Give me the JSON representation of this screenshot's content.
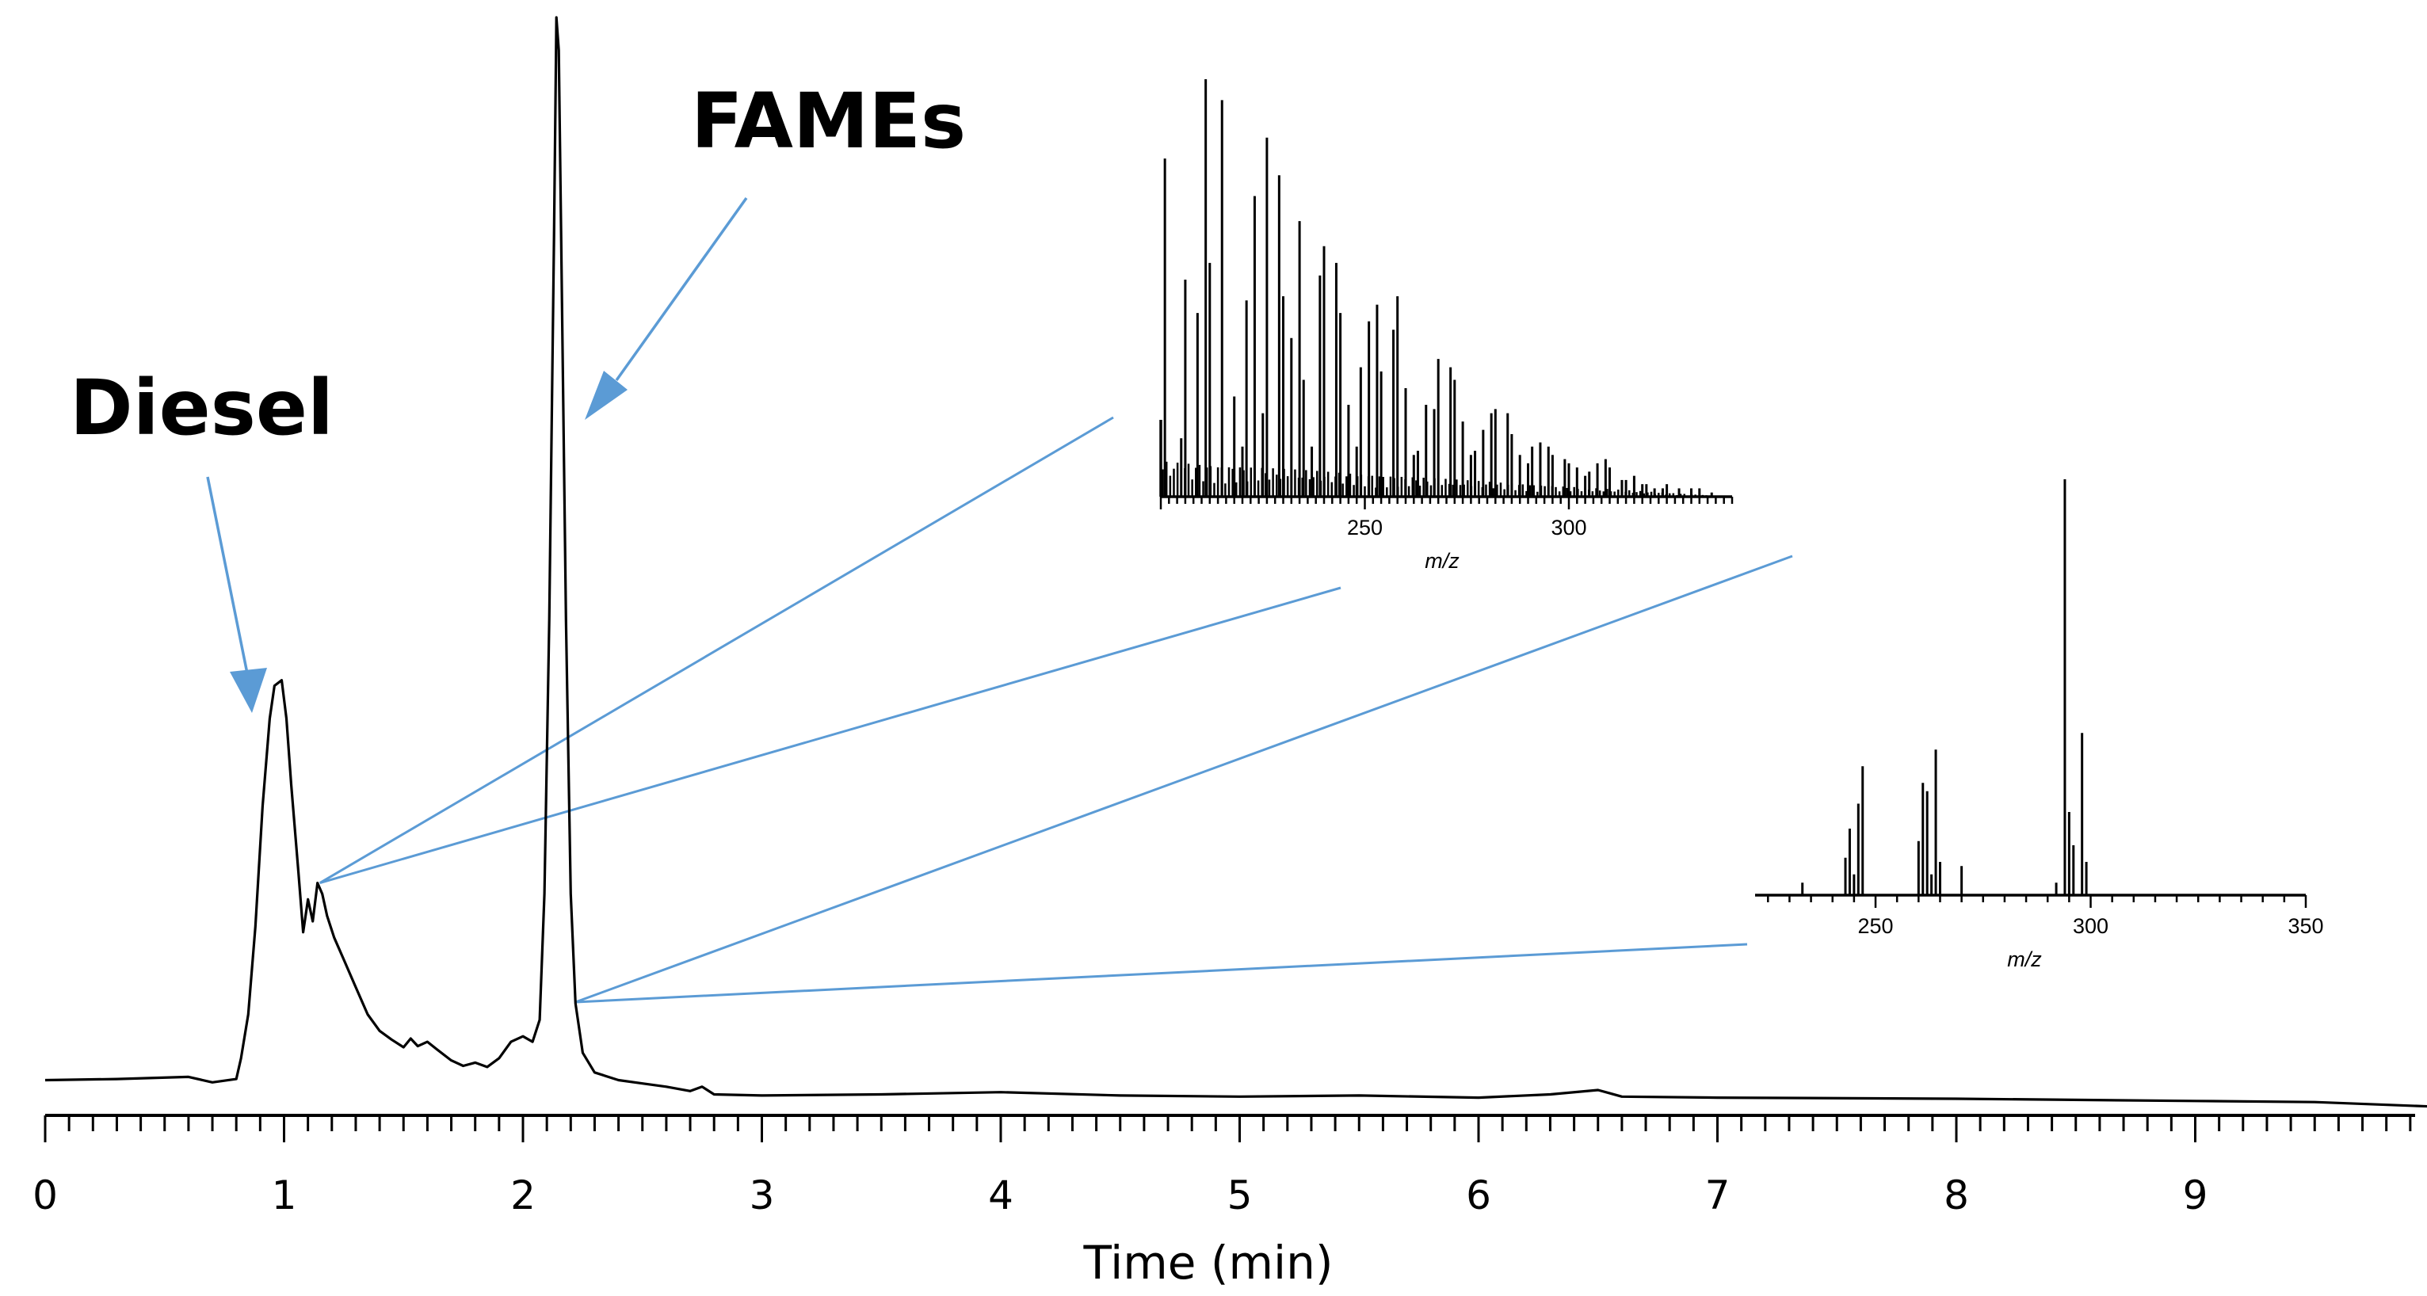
{
  "chart_data": {
    "type": "line",
    "title": "",
    "xlabel": "Time (min)",
    "ylabel": "",
    "xlim": [
      0,
      10
    ],
    "x_ticks": [
      0,
      1,
      2,
      3,
      4,
      5,
      6,
      7,
      8,
      9
    ],
    "x_tick_labels": [
      "0",
      "1",
      "2",
      "3",
      "4",
      "5",
      "6",
      "7",
      "8",
      "9"
    ],
    "minor_tick_step": 0.1,
    "y_relative_range": [
      0,
      100
    ],
    "trace": [
      [
        0.0,
        3.0
      ],
      [
        0.3,
        3.1
      ],
      [
        0.6,
        3.3
      ],
      [
        0.7,
        2.8
      ],
      [
        0.8,
        3.1
      ],
      [
        0.82,
        5
      ],
      [
        0.85,
        9
      ],
      [
        0.88,
        17
      ],
      [
        0.91,
        28
      ],
      [
        0.94,
        36
      ],
      [
        0.96,
        39
      ],
      [
        0.99,
        39.5
      ],
      [
        1.01,
        36
      ],
      [
        1.03,
        30
      ],
      [
        1.06,
        22
      ],
      [
        1.08,
        16.5
      ],
      [
        1.1,
        19.5
      ],
      [
        1.12,
        17.5
      ],
      [
        1.14,
        21
      ],
      [
        1.16,
        20
      ],
      [
        1.18,
        18
      ],
      [
        1.21,
        16
      ],
      [
        1.25,
        14
      ],
      [
        1.3,
        11.5
      ],
      [
        1.35,
        9
      ],
      [
        1.4,
        7.5
      ],
      [
        1.45,
        6.7
      ],
      [
        1.5,
        6.0
      ],
      [
        1.53,
        6.8
      ],
      [
        1.56,
        6.1
      ],
      [
        1.6,
        6.5
      ],
      [
        1.64,
        5.8
      ],
      [
        1.7,
        4.8
      ],
      [
        1.75,
        4.3
      ],
      [
        1.8,
        4.6
      ],
      [
        1.85,
        4.2
      ],
      [
        1.9,
        5.0
      ],
      [
        1.95,
        6.5
      ],
      [
        2.0,
        7.0
      ],
      [
        2.04,
        6.5
      ],
      [
        2.07,
        8.5
      ],
      [
        2.09,
        20
      ],
      [
        2.11,
        45
      ],
      [
        2.13,
        80
      ],
      [
        2.14,
        100
      ],
      [
        2.15,
        97
      ],
      [
        2.16,
        80
      ],
      [
        2.18,
        45
      ],
      [
        2.2,
        20
      ],
      [
        2.22,
        10
      ],
      [
        2.25,
        5.5
      ],
      [
        2.3,
        3.7
      ],
      [
        2.4,
        3.0
      ],
      [
        2.5,
        2.7
      ],
      [
        2.6,
        2.4
      ],
      [
        2.7,
        2.0
      ],
      [
        2.75,
        2.4
      ],
      [
        2.8,
        1.7
      ],
      [
        3.0,
        1.6
      ],
      [
        3.5,
        1.7
      ],
      [
        4.0,
        1.9
      ],
      [
        4.5,
        1.6
      ],
      [
        5.0,
        1.5
      ],
      [
        5.5,
        1.6
      ],
      [
        6.0,
        1.4
      ],
      [
        6.3,
        1.7
      ],
      [
        6.5,
        2.1
      ],
      [
        6.6,
        1.5
      ],
      [
        7.0,
        1.4
      ],
      [
        8.0,
        1.3
      ],
      [
        9.0,
        1.1
      ],
      [
        9.5,
        1.0
      ],
      [
        9.98,
        0.6
      ]
    ],
    "annotations": [
      {
        "label": "Diesel",
        "points_to_time": 0.97
      },
      {
        "label": "FAMEs",
        "points_to_time": 2.22
      }
    ],
    "callouts": [
      {
        "from_time": 1.15,
        "to_inset": "Diesel spectrum"
      },
      {
        "from_time": 2.22,
        "to_inset": "FAMEs spectrum"
      }
    ],
    "insets": [
      {
        "name": "Diesel spectrum",
        "type": "bar",
        "xlabel": "m/z",
        "x_ticks": [
          250,
          300
        ],
        "x_tick_labels": [
          "250",
          "300"
        ],
        "xlim": [
          200,
          340
        ],
        "mz": [
          201,
          205,
          206,
          209,
          211,
          212,
          215,
          218,
          220,
          221,
          223,
          225,
          226,
          229,
          230,
          232,
          234,
          235,
          237,
          239,
          240,
          243,
          244,
          246,
          248,
          249,
          251,
          253,
          254,
          257,
          258,
          260,
          262,
          263,
          265,
          267,
          268,
          271,
          272,
          274,
          276,
          277,
          279,
          281,
          282,
          285,
          286,
          288,
          290,
          291,
          293,
          295,
          296,
          299,
          300,
          302,
          304,
          305,
          307,
          309,
          310,
          313,
          314,
          316,
          318,
          319,
          321,
          323,
          324,
          327,
          330,
          332,
          335
        ],
        "intensity": [
          81,
          14,
          52,
          44,
          100,
          56,
          95,
          24,
          12,
          47,
          72,
          20,
          86,
          77,
          48,
          38,
          66,
          28,
          12,
          53,
          60,
          56,
          44,
          22,
          12,
          31,
          42,
          46,
          30,
          40,
          48,
          26,
          10,
          11,
          22,
          21,
          33,
          31,
          28,
          18,
          10,
          11,
          16,
          20,
          21,
          20,
          15,
          10,
          8,
          12,
          13,
          12,
          10,
          9,
          8,
          7,
          5,
          6,
          8,
          9,
          7,
          4,
          4,
          5,
          3,
          3,
          2,
          2,
          3,
          2,
          2,
          2,
          1
        ]
      },
      {
        "name": "FAMEs spectrum",
        "type": "bar",
        "xlabel": "m/z",
        "x_ticks": [
          250,
          300,
          350
        ],
        "x_tick_labels": [
          "250",
          "300",
          "350"
        ],
        "xlim": [
          222,
          350
        ],
        "mz": [
          233,
          243,
          244,
          245,
          246,
          247,
          260,
          261,
          262,
          263,
          264,
          265,
          270,
          292,
          294,
          295,
          296,
          298,
          299
        ],
        "intensity": [
          3,
          9,
          16,
          5,
          22,
          31,
          13,
          27,
          25,
          5,
          35,
          8,
          7,
          3,
          100,
          20,
          12,
          39,
          8
        ]
      }
    ]
  }
}
